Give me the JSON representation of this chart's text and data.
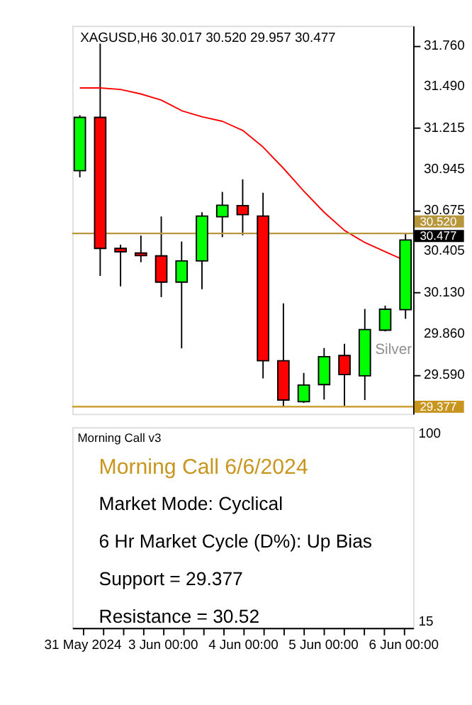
{
  "chart_data": [
    {
      "type": "candlestick",
      "title": "XAGUSD,H6  30.017 30.520 29.957 30.477",
      "categories": [
        "31 May 2024",
        null,
        null,
        null,
        "3 Jun 00:00",
        null,
        null,
        null,
        "4 Jun 00:00",
        null,
        null,
        null,
        "5 Jun 00:00",
        null,
        null,
        null,
        "6 Jun 00:00"
      ],
      "ohlc": [
        [
          30.934,
          31.3,
          30.89,
          31.286
        ],
        [
          31.286,
          31.772,
          30.24,
          30.421
        ],
        [
          30.421,
          30.446,
          30.171,
          30.399
        ],
        [
          30.391,
          30.506,
          30.33,
          30.374
        ],
        [
          30.372,
          30.632,
          30.1,
          30.199
        ],
        [
          30.199,
          30.467,
          29.762,
          30.339
        ],
        [
          30.339,
          30.66,
          30.152,
          30.635
        ],
        [
          30.63,
          30.794,
          30.495,
          30.706
        ],
        [
          30.704,
          30.877,
          30.508,
          30.644
        ],
        [
          30.635,
          30.789,
          29.564,
          29.68
        ],
        [
          29.68,
          30.059,
          29.377,
          29.421
        ],
        [
          29.41,
          29.6,
          29.402,
          29.52
        ],
        [
          29.523,
          29.764,
          29.424,
          29.707
        ],
        [
          29.715,
          29.792,
          29.383,
          29.589
        ],
        [
          29.581,
          30.022,
          29.421,
          29.886
        ],
        [
          29.882,
          30.044,
          29.874,
          30.02
        ],
        [
          30.017,
          30.52,
          29.957,
          30.477
        ]
      ],
      "series": [
        {
          "type": "line",
          "color": "#ff0000",
          "values": [
            31.48,
            31.48,
            31.47,
            31.44,
            31.4,
            31.33,
            31.29,
            31.26,
            31.2,
            31.09,
            30.95,
            30.8,
            30.66,
            30.54,
            30.46,
            30.4,
            30.34
          ]
        }
      ],
      "colors": [
        "#00ff00",
        "#ff0000",
        "#ff0000",
        "#ff0000",
        "#ff0000",
        "#00ff00",
        "#00ff00",
        "#00ff00",
        "#ff0000",
        "#ff0000",
        "#ff0000",
        "#00ff00",
        "#00ff00",
        "#ff0000",
        "#00ff00",
        "#00ff00",
        "#00ff00"
      ],
      "ylim": [
        29.33,
        31.89
      ],
      "yticks": [
        {
          "value": 31.76,
          "label": "31.760"
        },
        {
          "value": 31.49,
          "label": "31.490"
        },
        31.215,
        30.945,
        30.675,
        30.405,
        {
          "value": 30.13,
          "label": "30.130"
        },
        {
          "value": 29.86,
          "label": "29.860"
        },
        {
          "value": 29.59,
          "label": "29.590"
        }
      ],
      "ref_lines": [
        {
          "axis": "y",
          "value": 30.52,
          "label": "30.520",
          "color": "#b8963c"
        },
        {
          "axis": "y",
          "value": 29.377,
          "label": "29.377",
          "color": "#c8961e"
        }
      ],
      "annotations": [
        "Silver",
        "30.477"
      ],
      "tick_labels": "y",
      "grid": false
    },
    {
      "type": "other",
      "title": "Morning Call v3",
      "annotations": [
        "Morning Call 6/6/2024",
        "Market Mode: Cyclical",
        "6 Hr Market Cycle (D%): Up Bias",
        "Support = 29.377",
        "Resistance = 30.52",
        "100",
        "15"
      ]
    }
  ]
}
